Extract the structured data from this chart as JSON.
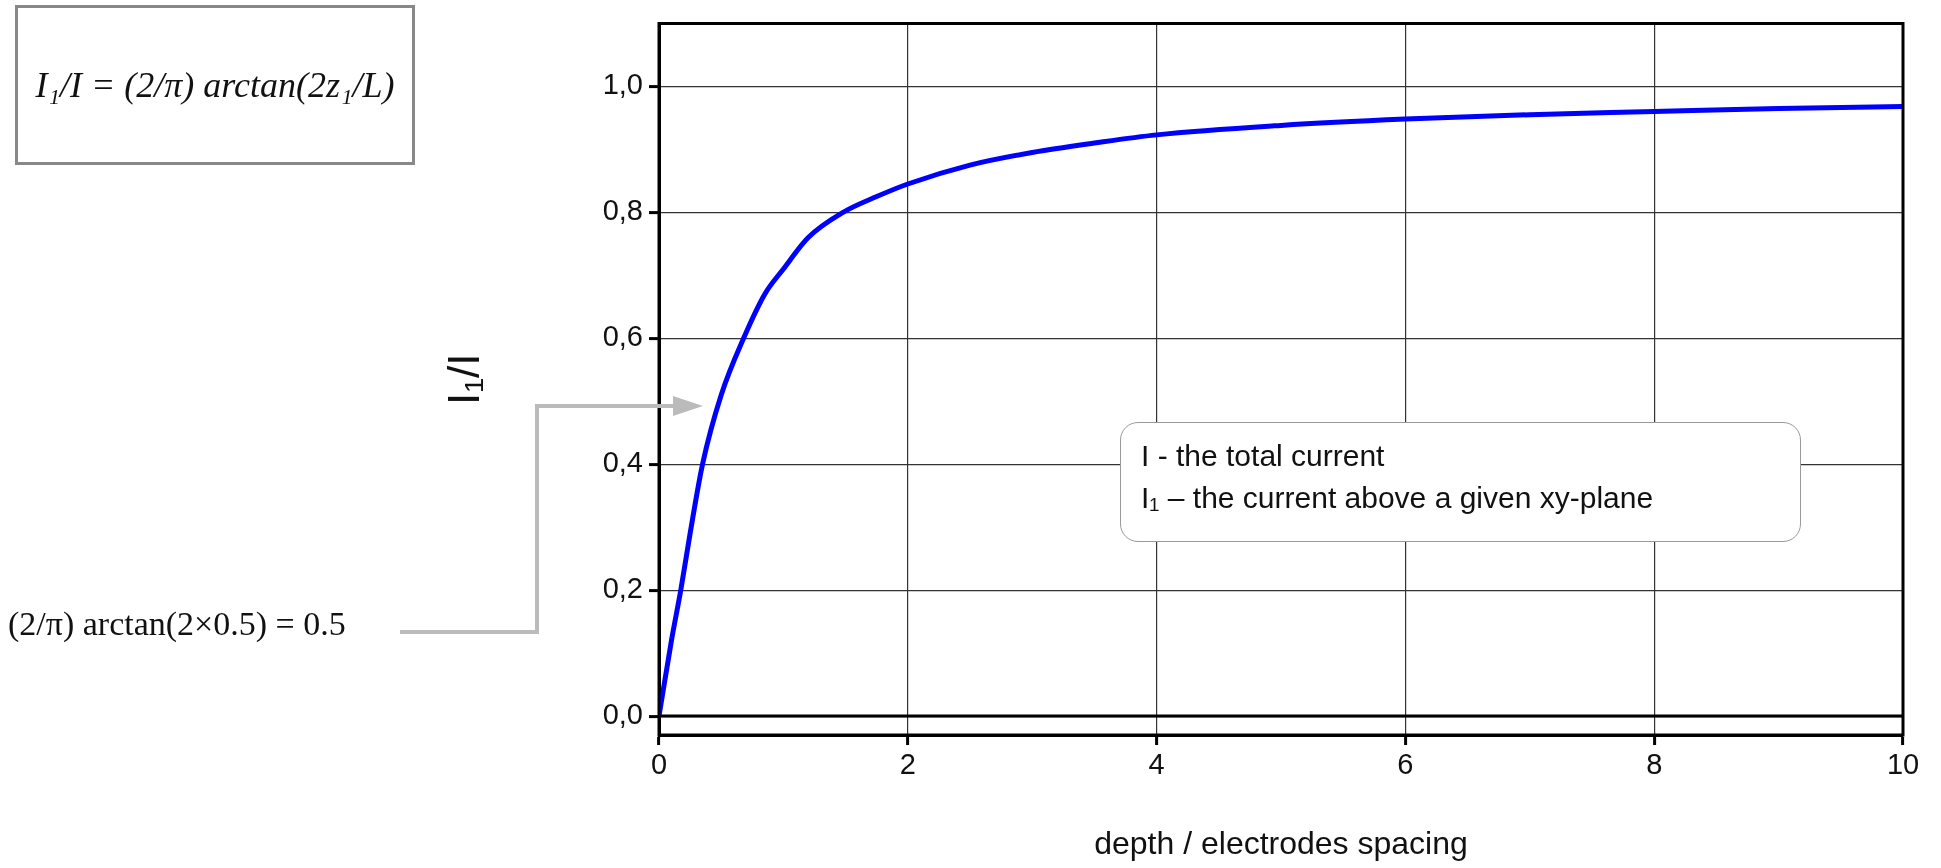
{
  "chart_data": {
    "type": "line",
    "xlabel": "depth / electrodes spacing",
    "ylabel": "I₁/I",
    "x": [
      0,
      0.1,
      0.175,
      0.25,
      0.35,
      0.5,
      0.68,
      0.85,
      1,
      1.2,
      1.48,
      1.75,
      2,
      2.5,
      3,
      3.5,
      4,
      5,
      6,
      7,
      8,
      9,
      10
    ],
    "series": [
      {
        "color": "#0000ff",
        "values": [
          0,
          0.12,
          0.2,
          0.29,
          0.4,
          0.51,
          0.6,
          0.67,
          0.71,
          0.76,
          0.8,
          0.825,
          0.845,
          0.875,
          0.895,
          0.91,
          0.923,
          0.938,
          0.948,
          0.955,
          0.96,
          0.965,
          0.968
        ]
      }
    ],
    "xlim": [
      0,
      10
    ],
    "xticks": [
      0,
      2,
      4,
      6,
      8,
      10
    ],
    "ylim": [
      -0.03,
      1.1
    ],
    "yticks": [
      {
        "value": 0,
        "label": "0,0"
      },
      {
        "value": 0.2,
        "label": "0,2"
      },
      {
        "value": 0.4,
        "label": "0,4"
      },
      {
        "value": 0.6,
        "label": "0,6"
      },
      {
        "value": 0.8,
        "label": "0,8"
      },
      {
        "value": 1,
        "label": "1,0"
      }
    ],
    "grid": true,
    "legend": false,
    "marker": "none",
    "line_style": "solid",
    "ref_lines": [
      {
        "axis": "y",
        "value": 0,
        "color": "#000000"
      }
    ],
    "annotations": [
      "I₁/I = (2/π) arctan(2z₁/L)",
      "(2/π) arctan(2×0.5) = 0.5",
      "I - the total current",
      "I₁ – the current above a given xy-plane"
    ]
  }
}
